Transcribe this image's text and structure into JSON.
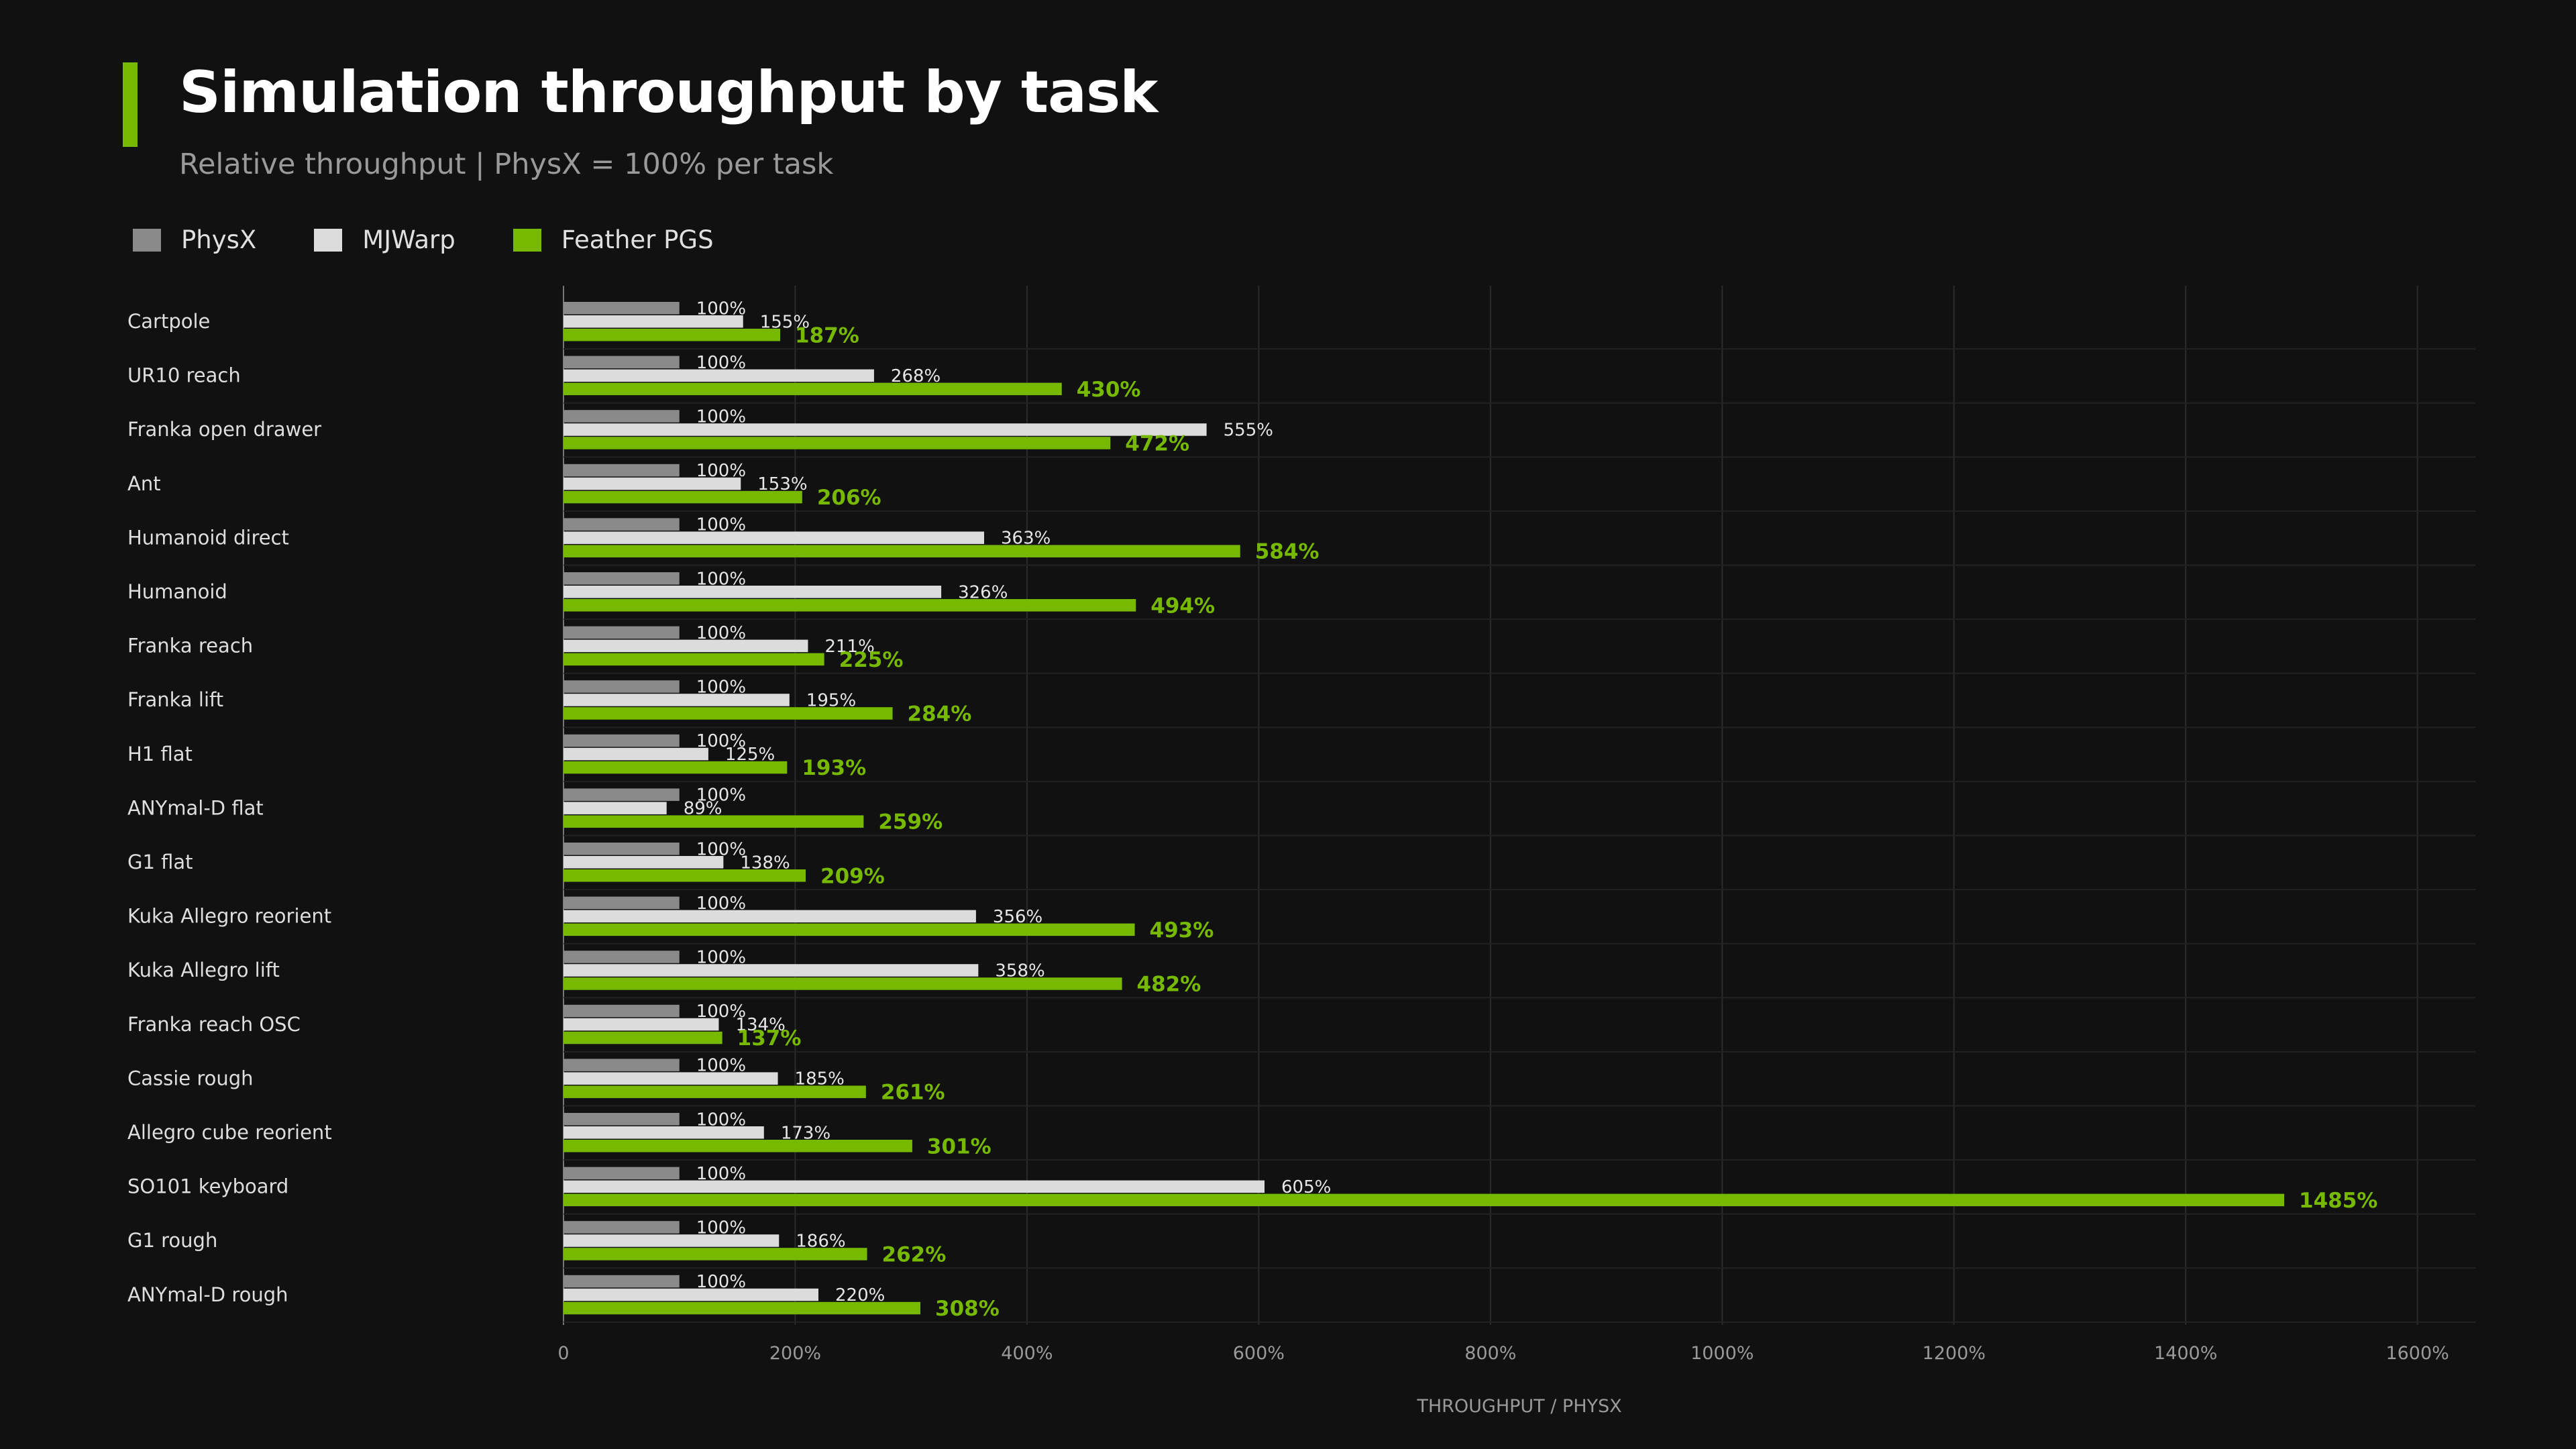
{
  "header": {
    "title": "Simulation throughput by task",
    "subtitle": "Relative throughput  |  PhysX = 100% per task",
    "accent_color": "#76b900"
  },
  "legend": [
    {
      "label": "PhysX",
      "color": "#8a8a8a"
    },
    {
      "label": "MJWarp",
      "color": "#dcdcdc"
    },
    {
      "label": "Feather PGS",
      "color": "#76b900"
    }
  ],
  "chart_data": {
    "type": "bar",
    "orientation": "horizontal",
    "categories": [
      "Cartpole",
      "UR10 reach",
      "Franka open drawer",
      "Ant",
      "Humanoid direct",
      "Humanoid",
      "Franka reach",
      "Franka lift",
      "H1 flat",
      "ANYmal-D flat",
      "G1 flat",
      "Kuka Allegro reorient",
      "Kuka Allegro lift",
      "Franka reach OSC",
      "Cassie rough",
      "Allegro cube reorient",
      "SO101 keyboard",
      "G1 rough",
      "ANYmal-D rough"
    ],
    "series": [
      {
        "name": "PhysX",
        "color": "#8a8a8a",
        "values": [
          100,
          100,
          100,
          100,
          100,
          100,
          100,
          100,
          100,
          100,
          100,
          100,
          100,
          100,
          100,
          100,
          100,
          100,
          100
        ]
      },
      {
        "name": "MJWarp",
        "color": "#dcdcdc",
        "values": [
          155,
          268,
          555,
          153,
          363,
          326,
          211,
          195,
          125,
          89,
          138,
          356,
          358,
          134,
          185,
          173,
          605,
          186,
          220
        ]
      },
      {
        "name": "Feather PGS",
        "color": "#76b900",
        "values": [
          187,
          430,
          472,
          206,
          584,
          494,
          225,
          284,
          193,
          259,
          209,
          493,
          482,
          137,
          261,
          301,
          1485,
          262,
          308
        ]
      }
    ],
    "value_suffix": "%",
    "xlabel": "THROUGHPUT / PHYSX",
    "xlim": [
      0,
      1650
    ],
    "xticks": [
      0,
      200,
      400,
      600,
      800,
      1000,
      1200,
      1400,
      1600
    ],
    "xtick_labels": [
      "0",
      "200%",
      "400%",
      "600%",
      "800%",
      "1000%",
      "1200%",
      "1400%",
      "1600%"
    ],
    "grid": true,
    "legend_position": "top-left"
  }
}
